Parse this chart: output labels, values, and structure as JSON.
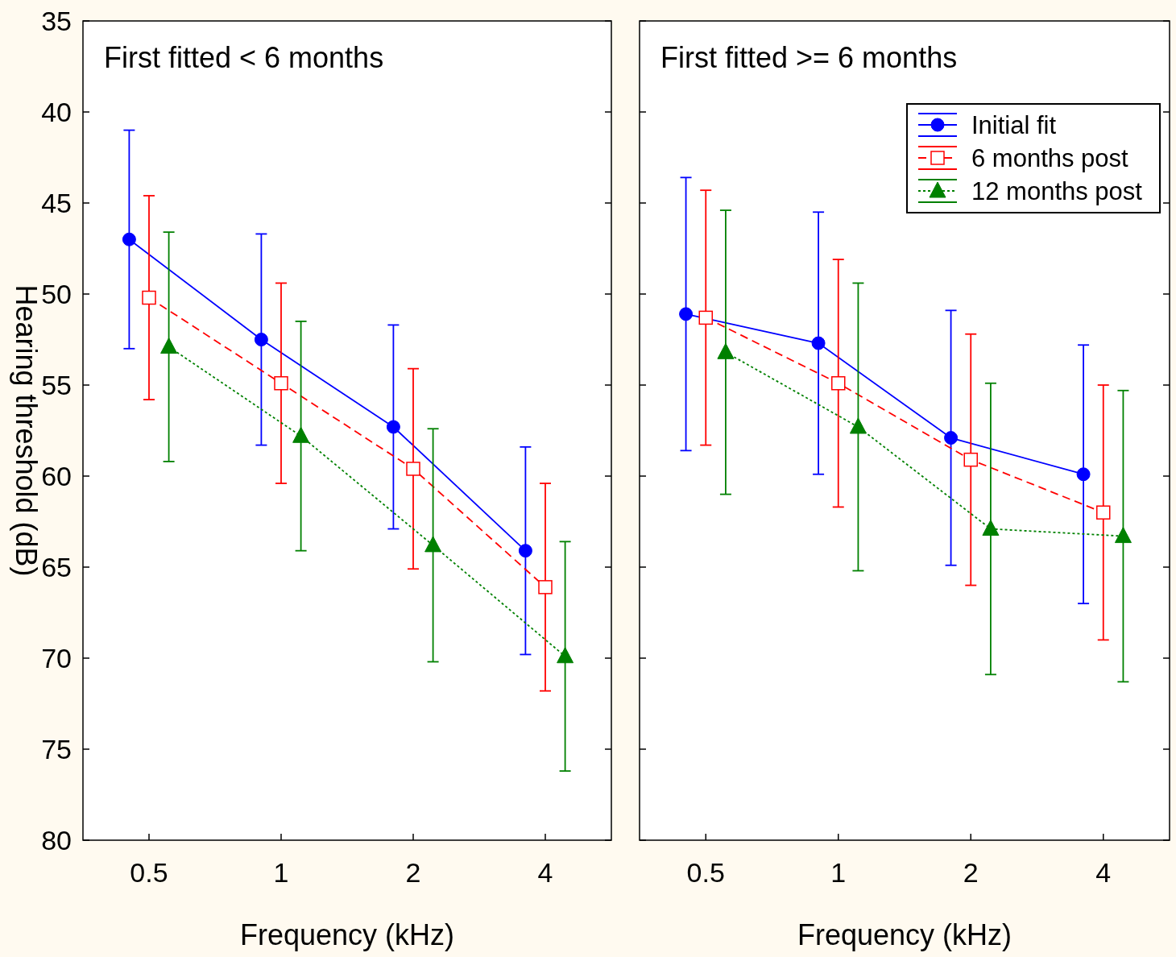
{
  "chart_data": [
    {
      "type": "line",
      "title": "First fitted < 6 months",
      "xlabel": "Frequency (kHz)",
      "ylabel": "Hearing threshold (dB)",
      "categories": [
        "0.5",
        "1",
        "2",
        "4"
      ],
      "ylim": [
        80,
        35
      ],
      "yticks": [
        35,
        40,
        45,
        50,
        55,
        60,
        65,
        70,
        75,
        80
      ],
      "grid": false,
      "legend": false,
      "series": [
        {
          "color": "#0000ff",
          "marker": "circle",
          "line_style": "solid",
          "values": [
            47.0,
            52.5,
            57.3,
            64.1
          ],
          "errors": [
            6.0,
            5.8,
            5.6,
            5.7
          ]
        },
        {
          "color": "#ff0000",
          "marker": "square",
          "line_style": "dashed",
          "values": [
            50.2,
            54.9,
            59.6,
            66.1
          ],
          "errors": [
            5.6,
            5.5,
            5.5,
            5.7
          ]
        },
        {
          "color": "#008000",
          "marker": "triangle",
          "line_style": "dotted",
          "values": [
            52.9,
            57.8,
            63.8,
            69.9
          ],
          "errors": [
            6.3,
            6.3,
            6.4,
            6.3
          ]
        }
      ]
    },
    {
      "type": "line",
      "title": "First fitted >= 6 months",
      "xlabel": "Frequency (kHz)",
      "categories": [
        "0.5",
        "1",
        "2",
        "4"
      ],
      "ylim": [
        80,
        35
      ],
      "yticks": [
        35,
        40,
        45,
        50,
        55,
        60,
        65,
        70,
        75,
        80
      ],
      "tick_labels": "x",
      "grid": false,
      "legend": "top right",
      "series": [
        {
          "name": "Initial fit",
          "color": "#0000ff",
          "marker": "circle",
          "line_style": "solid",
          "values": [
            51.1,
            52.7,
            57.9,
            59.9
          ],
          "errors": [
            7.5,
            7.2,
            7.0,
            7.1
          ]
        },
        {
          "name": "6 months post",
          "color": "#ff0000",
          "marker": "square",
          "line_style": "dashed",
          "values": [
            51.3,
            54.9,
            59.1,
            62.0
          ],
          "errors": [
            7.0,
            6.8,
            6.9,
            7.0
          ]
        },
        {
          "name": "12 months post",
          "color": "#008000",
          "marker": "triangle",
          "line_style": "dotted",
          "values": [
            53.2,
            57.3,
            62.9,
            63.3
          ],
          "errors": [
            7.8,
            7.9,
            8.0,
            8.0
          ]
        }
      ]
    }
  ]
}
